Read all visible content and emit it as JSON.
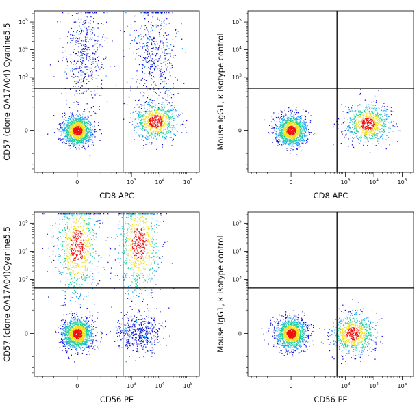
{
  "chart_data": [
    {
      "type": "scatter",
      "panel": "top-left",
      "xlabel": "CD8 APC",
      "ylabel": "CD57 (clone QA17A04) Cyanine5.5",
      "x_scale": "biexponential",
      "y_scale": "biexponential",
      "x_ticks": [
        "0",
        "10^3",
        "10^4",
        "10^5"
      ],
      "y_ticks": [
        "0",
        "10^3",
        "10^4",
        "10^5"
      ],
      "x_gate": 500,
      "y_gate": 400,
      "populations": [
        {
          "name": "CD8- CD57-",
          "x_center": 0,
          "y_center": 0,
          "density": "high"
        },
        {
          "name": "CD8+ CD57-",
          "x_center": 7000,
          "y_center": 40,
          "density": "medium"
        },
        {
          "name": "CD8- CD57+",
          "x_center": 30,
          "y_center": 8000,
          "density": "low"
        },
        {
          "name": "CD8+ CD57+",
          "x_center": 6000,
          "y_center": 8000,
          "density": "low"
        }
      ]
    },
    {
      "type": "scatter",
      "panel": "top-right",
      "xlabel": "CD8 APC",
      "ylabel": "Mouse IgG1, κ isotype control",
      "x_scale": "biexponential",
      "y_scale": "biexponential",
      "x_ticks": [
        "0",
        "10^3",
        "10^4",
        "10^5"
      ],
      "y_ticks": [
        "0",
        "10^3",
        "10^4",
        "10^5"
      ],
      "x_gate": 500,
      "y_gate": 400,
      "populations": [
        {
          "name": "CD8-",
          "x_center": 0,
          "y_center": 0,
          "density": "high"
        },
        {
          "name": "CD8+",
          "x_center": 6000,
          "y_center": 30,
          "density": "medium"
        }
      ]
    },
    {
      "type": "scatter",
      "panel": "bottom-left",
      "xlabel": "CD56 PE",
      "ylabel": "CD57 (clone QA17A04)Cyanine5.5",
      "x_scale": "biexponential",
      "y_scale": "biexponential",
      "x_ticks": [
        "0",
        "10^3",
        "10^4",
        "10^5"
      ],
      "y_ticks": [
        "0",
        "10^3",
        "10^4",
        "10^5"
      ],
      "x_gate": 500,
      "y_gate": 500,
      "populations": [
        {
          "name": "CD56- CD57-",
          "x_center": 0,
          "y_center": 0,
          "density": "high"
        },
        {
          "name": "CD56- CD57+",
          "x_center": 0,
          "y_center": 15000,
          "density": "medium"
        },
        {
          "name": "CD56+ CD57+",
          "x_center": 1800,
          "y_center": 20000,
          "density": "medium"
        },
        {
          "name": "CD56+ CD57-",
          "x_center": 1800,
          "y_center": 0,
          "density": "low"
        }
      ]
    },
    {
      "type": "scatter",
      "panel": "bottom-right",
      "xlabel": "CD56 PE",
      "ylabel": "Mouse IgG1, κ isotype control",
      "x_scale": "biexponential",
      "y_scale": "biexponential",
      "x_ticks": [
        "0",
        "10^3",
        "10^4",
        "10^5"
      ],
      "y_ticks": [
        "0",
        "10^3",
        "10^4",
        "10^5"
      ],
      "x_gate": 500,
      "y_gate": 500,
      "populations": [
        {
          "name": "CD56-",
          "x_center": 0,
          "y_center": 0,
          "density": "high"
        },
        {
          "name": "CD56+",
          "x_center": 1800,
          "y_center": 0,
          "density": "medium"
        }
      ]
    }
  ],
  "colors": {
    "low_density": "#1010d8",
    "mid_low_density": "#1aa0ff",
    "mid_density": "#22d0a0",
    "mid_high_density": "#f0e020",
    "high_density": "#f01010",
    "gate_line": "#000000"
  }
}
